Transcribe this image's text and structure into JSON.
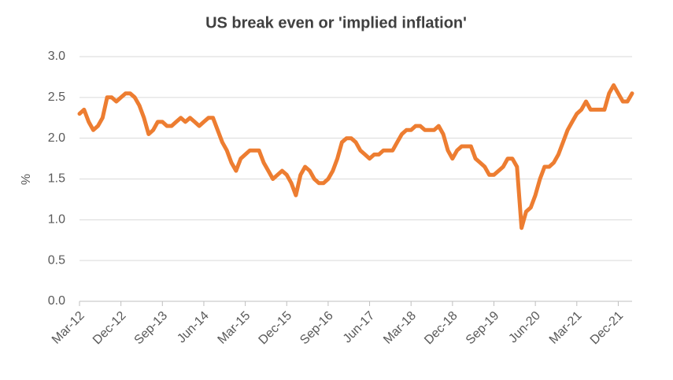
{
  "chart_data": {
    "type": "line",
    "title": "US break even or 'implied inflation'",
    "y_label": "%",
    "categories": [
      "Mar-12",
      null,
      null,
      null,
      null,
      null,
      null,
      null,
      null,
      "Dec-12",
      null,
      null,
      null,
      null,
      null,
      null,
      null,
      null,
      "Sep-13",
      null,
      null,
      null,
      null,
      null,
      null,
      null,
      null,
      "Jun-14",
      null,
      null,
      null,
      null,
      null,
      null,
      null,
      null,
      "Mar-15",
      null,
      null,
      null,
      null,
      null,
      null,
      null,
      null,
      "Dec-15",
      null,
      null,
      null,
      null,
      null,
      null,
      null,
      null,
      "Sep-16",
      null,
      null,
      null,
      null,
      null,
      null,
      null,
      null,
      "Jun-17",
      null,
      null,
      null,
      null,
      null,
      null,
      null,
      null,
      "Mar-18",
      null,
      null,
      null,
      null,
      null,
      null,
      null,
      null,
      "Dec-18",
      null,
      null,
      null,
      null,
      null,
      null,
      null,
      null,
      "Sep-19",
      null,
      null,
      null,
      null,
      null,
      null,
      null,
      null,
      "Jun-20",
      null,
      null,
      null,
      null,
      null,
      null,
      null,
      null,
      "Mar-21",
      null,
      null,
      null,
      null,
      null,
      null,
      null,
      null,
      "Dec-21",
      null,
      null,
      null
    ],
    "series": [
      {
        "name": "US break even",
        "color": "#ed7d31",
        "values": [
          2.3,
          2.35,
          2.2,
          2.1,
          2.15,
          2.25,
          2.5,
          2.5,
          2.45,
          2.5,
          2.55,
          2.55,
          2.5,
          2.4,
          2.25,
          2.05,
          2.1,
          2.2,
          2.2,
          2.15,
          2.15,
          2.2,
          2.25,
          2.2,
          2.25,
          2.2,
          2.15,
          2.2,
          2.25,
          2.25,
          2.1,
          1.95,
          1.85,
          1.7,
          1.6,
          1.75,
          1.8,
          1.85,
          1.85,
          1.85,
          1.7,
          1.6,
          1.5,
          1.55,
          1.6,
          1.55,
          1.45,
          1.3,
          1.55,
          1.65,
          1.6,
          1.5,
          1.45,
          1.45,
          1.5,
          1.6,
          1.75,
          1.95,
          2.0,
          2.0,
          1.95,
          1.85,
          1.8,
          1.75,
          1.8,
          1.8,
          1.85,
          1.85,
          1.85,
          1.95,
          2.05,
          2.1,
          2.1,
          2.15,
          2.15,
          2.1,
          2.1,
          2.1,
          2.15,
          2.05,
          1.85,
          1.75,
          1.85,
          1.9,
          1.9,
          1.9,
          1.75,
          1.7,
          1.65,
          1.55,
          1.55,
          1.6,
          1.65,
          1.75,
          1.75,
          1.65,
          0.9,
          1.1,
          1.15,
          1.3,
          1.5,
          1.65,
          1.65,
          1.7,
          1.8,
          1.95,
          2.1,
          2.2,
          2.3,
          2.35,
          2.45,
          2.35,
          2.35,
          2.35,
          2.35,
          2.55,
          2.65,
          2.55,
          2.45,
          2.45,
          2.55
        ]
      }
    ],
    "ylim": [
      0,
      3
    ],
    "yticks": [
      {
        "value": 0,
        "label": "0.0"
      },
      0.5,
      {
        "value": 1,
        "label": "1.0"
      },
      1.5,
      {
        "value": 2,
        "label": "2.0"
      },
      2.5,
      {
        "value": 3,
        "label": "3.0"
      }
    ],
    "grid": true
  }
}
